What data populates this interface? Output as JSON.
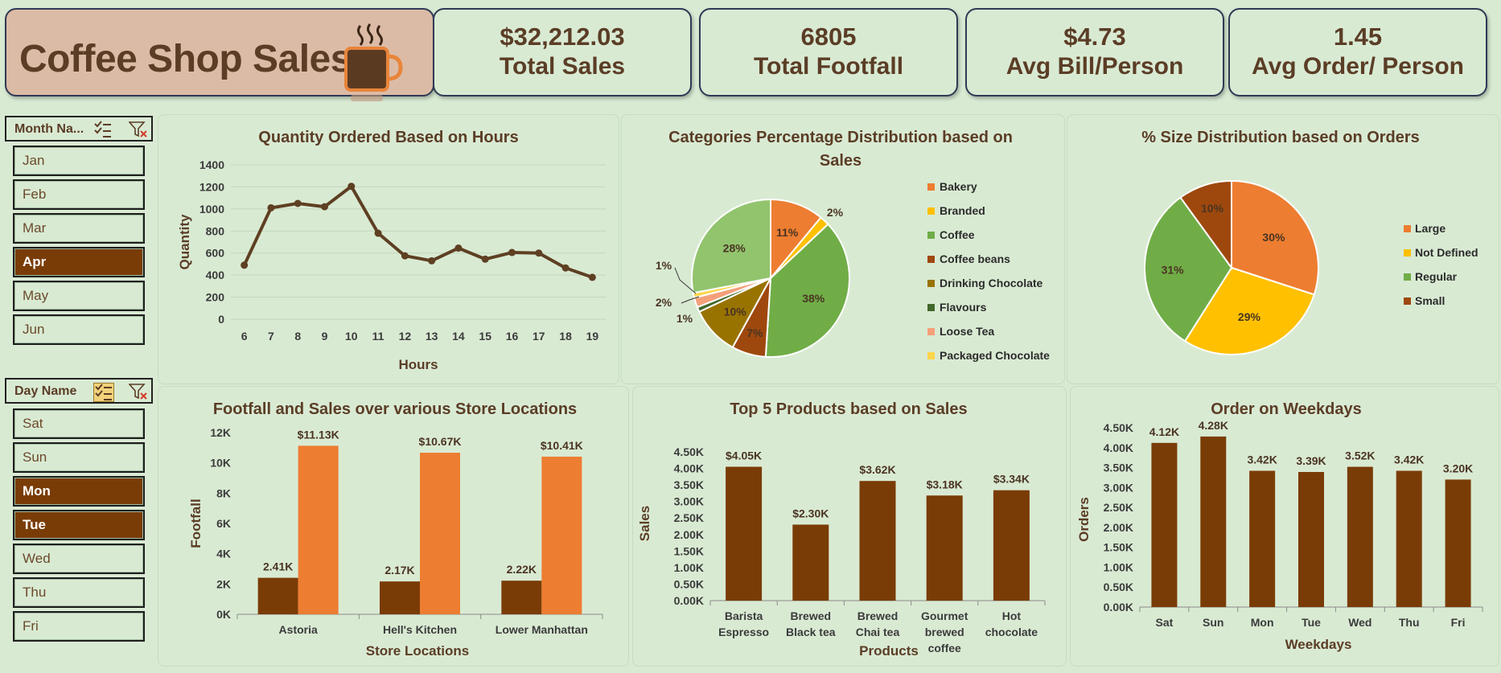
{
  "header": {
    "title": "Coffee Shop Sales",
    "icon": "coffee-cup-icon"
  },
  "kpis": [
    {
      "value": "$32,212.03",
      "label": "Total Sales"
    },
    {
      "value": "6805",
      "label": "Total Footfall"
    },
    {
      "value": "$4.73",
      "label": "Avg Bill/Person"
    },
    {
      "value": "1.45",
      "label": "Avg Order/ Person"
    }
  ],
  "slicers": {
    "month": {
      "title": "Month Na...",
      "items": [
        {
          "label": "Jan",
          "selected": false
        },
        {
          "label": "Feb",
          "selected": false
        },
        {
          "label": "Mar",
          "selected": false
        },
        {
          "label": "Apr",
          "selected": true
        },
        {
          "label": "May",
          "selected": false
        },
        {
          "label": "Jun",
          "selected": false
        }
      ]
    },
    "day": {
      "title": "Day Name",
      "items": [
        {
          "label": "Sat",
          "selected": false
        },
        {
          "label": "Sun",
          "selected": false
        },
        {
          "label": "Mon",
          "selected": true
        },
        {
          "label": "Tue",
          "selected": true
        },
        {
          "label": "Wed",
          "selected": false
        },
        {
          "label": "Thu",
          "selected": false
        },
        {
          "label": "Fri",
          "selected": false
        }
      ]
    }
  },
  "colors": {
    "brown": "#7a3c06",
    "orange": "#ed7d31",
    "line": "#5e3f22",
    "bakery": "#ed7d31",
    "branded": "#ffc000",
    "coffee": "#70ad47",
    "coffee_beans": "#9e480e",
    "drinking_chocolate": "#997300",
    "flavours": "#43682b",
    "loose_tea": "#f4a07a",
    "packaged_chocolate": "#ffd54a",
    "coffee_light": "#92c46e"
  },
  "chart_data": [
    {
      "id": "hours",
      "type": "line",
      "title": "Quantity Ordered Based on Hours",
      "xlabel": "Hours",
      "ylabel": "Quantity",
      "x": [
        "6",
        "7",
        "8",
        "9",
        "10",
        "11",
        "12",
        "13",
        "14",
        "15",
        "16",
        "17",
        "18",
        "19"
      ],
      "values": [
        490,
        1010,
        1050,
        1020,
        1205,
        780,
        575,
        530,
        645,
        545,
        605,
        600,
        465,
        380
      ],
      "ylim": [
        0,
        1400
      ],
      "yticks": [
        "0",
        "200",
        "400",
        "600",
        "800",
        "1000",
        "1200",
        "1400"
      ],
      "grid": true
    },
    {
      "id": "categories",
      "type": "pie",
      "title": "Categories Percentage Distribution based on Sales",
      "labels": [
        "Bakery",
        "Branded",
        "Coffee",
        "Coffee beans",
        "Drinking Chocolate",
        "Flavours",
        "Loose Tea",
        "Packaged Chocolate"
      ],
      "slices": [
        {
          "label": "Bakery",
          "value": 11,
          "text": "11%"
        },
        {
          "label": "Branded",
          "value": 2,
          "text": "2%"
        },
        {
          "label": "Coffee",
          "value": 38,
          "text": "38%"
        },
        {
          "label": "Coffee beans",
          "value": 7,
          "text": "7%"
        },
        {
          "label": "Drinking Chocolate",
          "value": 10,
          "text": "10%"
        },
        {
          "label": "Flavours",
          "value": 1,
          "text": "1%"
        },
        {
          "label": "Loose Tea",
          "value": 2,
          "text": "2%"
        },
        {
          "label": "Packaged Chocolate",
          "value": 1,
          "text": "1%"
        },
        {
          "label": "",
          "value": 28,
          "text": "28%"
        }
      ],
      "legend": "right"
    },
    {
      "id": "sizes",
      "type": "pie",
      "title": "% Size Distribution based on Orders",
      "labels": [
        "Large",
        "Not Defined",
        "Regular",
        "Small"
      ],
      "slices": [
        {
          "label": "Large",
          "value": 30,
          "text": "30%"
        },
        {
          "label": "Not Defined",
          "value": 29,
          "text": "29%"
        },
        {
          "label": "Regular",
          "value": 31,
          "text": "31%"
        },
        {
          "label": "Small",
          "value": 10,
          "text": "10%"
        }
      ],
      "legend": "right"
    },
    {
      "id": "stores",
      "type": "bar",
      "title": "Footfall and Sales over various Store Locations",
      "xlabel": "Store Locations",
      "ylabel": "Footfall",
      "categories": [
        "Astoria",
        "Hell's Kitchen",
        "Lower Manhattan"
      ],
      "series": [
        {
          "values": [
            2410,
            2170,
            2220
          ],
          "labels": [
            "2.41K",
            "2.17K",
            "2.22K"
          ]
        },
        {
          "values": [
            11130,
            10670,
            10410
          ],
          "labels": [
            "$11.13K",
            "$10.67K",
            "$10.41K"
          ]
        }
      ],
      "ylim": [
        0,
        12000
      ],
      "yticks": [
        "0K",
        "2K",
        "4K",
        "6K",
        "8K",
        "10K",
        "12K"
      ]
    },
    {
      "id": "products",
      "type": "bar",
      "title": "Top 5 Products based on Sales",
      "xlabel": "Products",
      "ylabel": "Sales",
      "categories": [
        [
          "Barista",
          "Espresso"
        ],
        [
          "Brewed",
          "Black tea"
        ],
        [
          "Brewed",
          "Chai tea"
        ],
        [
          "Gourmet",
          "brewed",
          "coffee"
        ],
        [
          "Hot",
          "chocolate"
        ]
      ],
      "values": [
        4050,
        2300,
        3620,
        3180,
        3340
      ],
      "labels": [
        "$4.05K",
        "$2.30K",
        "$3.62K",
        "$3.18K",
        "$3.34K"
      ],
      "ylim": [
        0,
        4500
      ],
      "yticks": [
        "0.00K",
        "0.50K",
        "1.00K",
        "1.50K",
        "2.00K",
        "2.50K",
        "3.00K",
        "3.50K",
        "4.00K",
        "4.50K"
      ]
    },
    {
      "id": "weekdays",
      "type": "bar",
      "title": "Order on Weekdays",
      "xlabel": "Weekdays",
      "ylabel": "Orders",
      "categories": [
        "Sat",
        "Sun",
        "Mon",
        "Tue",
        "Wed",
        "Thu",
        "Fri"
      ],
      "values": [
        4120,
        4280,
        3420,
        3390,
        3520,
        3420,
        3200
      ],
      "labels": [
        "4.12K",
        "4.28K",
        "3.42K",
        "3.39K",
        "3.52K",
        "3.42K",
        "3.20K"
      ],
      "ylim": [
        0,
        4500
      ],
      "yticks": [
        "0.00K",
        "0.50K",
        "1.00K",
        "1.50K",
        "2.00K",
        "2.50K",
        "3.00K",
        "3.50K",
        "4.00K",
        "4.50K"
      ]
    }
  ]
}
